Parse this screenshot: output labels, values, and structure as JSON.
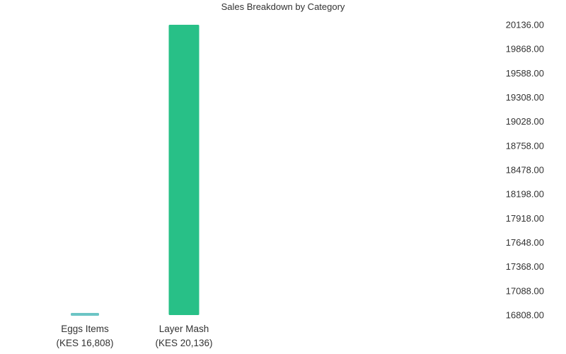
{
  "chart_data": {
    "type": "bar",
    "title": "Sales Breakdown by Category",
    "xlabel": "",
    "ylabel": "",
    "ylim": [
      16808,
      20136
    ],
    "y_axis_position": "right",
    "grid": false,
    "legend": "none",
    "y_ticks": [
      "20136.00",
      "19868.00",
      "19588.00",
      "19308.00",
      "19028.00",
      "18758.00",
      "18478.00",
      "18198.00",
      "17918.00",
      "17648.00",
      "17368.00",
      "17088.00",
      "16808.00"
    ],
    "categories": [
      {
        "name": "Eggs Items",
        "value_label": "(KES 16,808)"
      },
      {
        "name": "Layer Mash",
        "value_label": "(KES 20,136)"
      }
    ],
    "values": [
      16808,
      20136
    ],
    "colors": [
      "#6cc5c5",
      "#28c087"
    ]
  }
}
